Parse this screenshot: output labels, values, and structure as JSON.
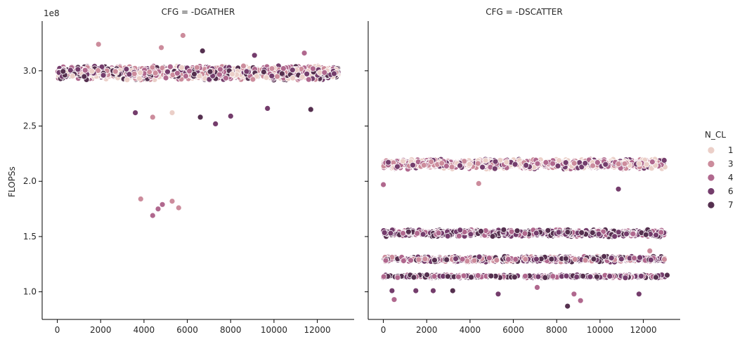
{
  "chart_data": {
    "type": "scatter",
    "ylabel": "FLOPSs",
    "y_offset_label": "1e8",
    "ylim": [
      0.75,
      3.45
    ],
    "xlim": [
      -700,
      13700
    ],
    "y_ticks": [
      1.0,
      1.5,
      2.0,
      2.5,
      3.0
    ],
    "y_tick_labels": [
      "1.0",
      "1.5",
      "2.0",
      "2.5",
      "3.0"
    ],
    "x_ticks": [
      0,
      2000,
      4000,
      6000,
      8000,
      10000,
      12000
    ],
    "x_tick_labels": [
      "0",
      "2000",
      "4000",
      "6000",
      "8000",
      "10000",
      "12000"
    ],
    "legend": {
      "title": "N_CL",
      "placement": "right",
      "entries": [
        {
          "label": "1",
          "color": "#ebcfc8"
        },
        {
          "label": "3",
          "color": "#cc8c9c"
        },
        {
          "label": "4",
          "color": "#b0688e"
        },
        {
          "label": "6",
          "color": "#743d6c"
        },
        {
          "label": "7",
          "color": "#55304f"
        }
      ]
    },
    "x_max": 13000,
    "panels": [
      {
        "title": "CFG = -DGATHER",
        "bands": [
          {
            "center": 2.98,
            "spread": 0.05,
            "colors": [
              0,
              1,
              2,
              3,
              4
            ],
            "count": 1300
          }
        ],
        "outliers": [
          {
            "x": 3850,
            "y": 1.84,
            "series": 1
          },
          {
            "x": 4400,
            "y": 1.69,
            "series": 2
          },
          {
            "x": 4650,
            "y": 1.75,
            "series": 2
          },
          {
            "x": 4850,
            "y": 1.79,
            "series": 2
          },
          {
            "x": 5300,
            "y": 1.82,
            "series": 1
          },
          {
            "x": 5600,
            "y": 1.76,
            "series": 1
          },
          {
            "x": 5800,
            "y": 3.32,
            "series": 1
          },
          {
            "x": 1900,
            "y": 3.24,
            "series": 1
          },
          {
            "x": 4800,
            "y": 3.21,
            "series": 1
          },
          {
            "x": 7300,
            "y": 2.52,
            "series": 3
          },
          {
            "x": 4400,
            "y": 2.58,
            "series": 1
          },
          {
            "x": 6600,
            "y": 2.58,
            "series": 4
          },
          {
            "x": 8000,
            "y": 2.59,
            "series": 3
          },
          {
            "x": 5300,
            "y": 2.62,
            "series": 0
          },
          {
            "x": 3600,
            "y": 2.62,
            "series": 3
          },
          {
            "x": 11700,
            "y": 2.65,
            "series": 4
          },
          {
            "x": 9700,
            "y": 2.66,
            "series": 3
          },
          {
            "x": 6700,
            "y": 3.18,
            "series": 4
          },
          {
            "x": 11400,
            "y": 3.16,
            "series": 2
          },
          {
            "x": 9100,
            "y": 3.14,
            "series": 3
          }
        ]
      },
      {
        "title": "CFG = -DSCATTER",
        "bands": [
          {
            "center": 2.155,
            "spread": 0.035,
            "colors": [
              0,
              1,
              2,
              3
            ],
            "count": 1100
          },
          {
            "center": 1.53,
            "spread": 0.025,
            "colors": [
              3,
              4,
              2
            ],
            "count": 750
          },
          {
            "center": 1.295,
            "spread": 0.02,
            "colors": [
              1,
              2,
              3,
              4
            ],
            "count": 650
          },
          {
            "center": 1.14,
            "spread": 0.012,
            "colors": [
              2,
              3,
              4
            ],
            "count": 350
          }
        ],
        "outliers": [
          {
            "x": 0,
            "y": 1.97,
            "series": 2
          },
          {
            "x": 4400,
            "y": 1.98,
            "series": 1
          },
          {
            "x": 10850,
            "y": 1.93,
            "series": 3
          },
          {
            "x": 12300,
            "y": 1.37,
            "series": 1
          },
          {
            "x": 500,
            "y": 0.93,
            "series": 2
          },
          {
            "x": 8500,
            "y": 0.87,
            "series": 4
          },
          {
            "x": 9100,
            "y": 0.92,
            "series": 2
          },
          {
            "x": 8800,
            "y": 0.98,
            "series": 2
          },
          {
            "x": 11800,
            "y": 0.98,
            "series": 3
          },
          {
            "x": 400,
            "y": 1.01,
            "series": 3
          },
          {
            "x": 1500,
            "y": 1.01,
            "series": 3
          },
          {
            "x": 2300,
            "y": 1.01,
            "series": 3
          },
          {
            "x": 3200,
            "y": 1.01,
            "series": 4
          },
          {
            "x": 5300,
            "y": 0.98,
            "series": 3
          },
          {
            "x": 7100,
            "y": 1.04,
            "series": 2
          },
          {
            "x": 13100,
            "y": 1.15,
            "series": 4
          }
        ]
      }
    ]
  }
}
